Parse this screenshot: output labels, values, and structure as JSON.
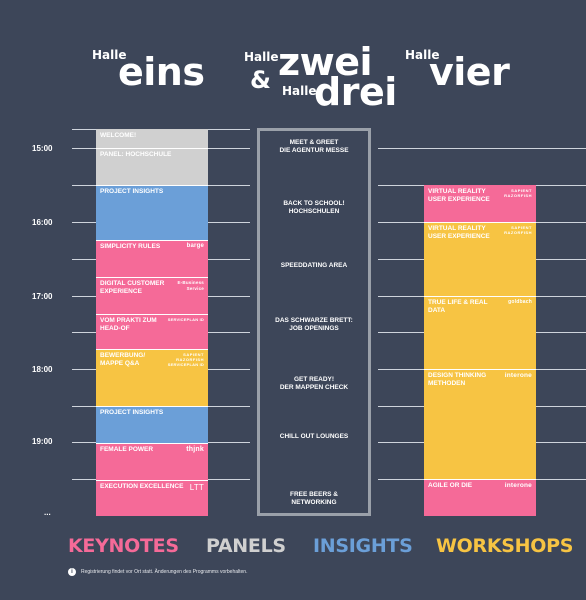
{
  "halls": {
    "eins": {
      "prefix": "Halle",
      "name": "eins"
    },
    "zwei": {
      "prefix": "Halle",
      "name": "zwei"
    },
    "amp": "&",
    "drei": {
      "prefix": "Halle",
      "name": "drei"
    },
    "vier": {
      "prefix": "Halle",
      "name": "vier"
    }
  },
  "times": [
    "15:00",
    "16:00",
    "17:00",
    "18:00",
    "19:00",
    "..."
  ],
  "left_sessions": [
    {
      "label": "WELCOME!",
      "logo": "",
      "color": "grey"
    },
    {
      "label": "PANEL: HOCHSCHULE",
      "logo": "",
      "color": "grey"
    },
    {
      "label": "PROJECT INSIGHTS",
      "logo": "",
      "color": "blue"
    },
    {
      "label": "SIMPLICITY RULES",
      "logo": "barge",
      "color": "pink"
    },
    {
      "label": "DIGITAL CUSTOMER EXPERIENCE",
      "logo": "E-Business Service",
      "color": "pink"
    },
    {
      "label": "VOM PRAKTI ZUM HEAD-OF",
      "logo": "SERVICEPLAN ID",
      "color": "pink"
    },
    {
      "label": "BEWERBUNG/ MAPPE Q&A",
      "logo": "SAPIENT RAZORFISH",
      "logo2": "SERVICEPLAN ID",
      "color": "yellow"
    },
    {
      "label": "PROJECT INSIGHTS",
      "logo": "",
      "color": "blue"
    },
    {
      "label": "FEMALE POWER",
      "logo": "thjnk",
      "color": "pink"
    },
    {
      "label": "EXECUTION EXCELLENCE",
      "logo": "LTT",
      "color": "pink"
    }
  ],
  "middle_sessions": [
    "MEET & GREET\nDIE AGENTUR MESSE",
    "BACK TO SCHOOL!\nHOCHSCHULEN",
    "SPEEDDATING AREA",
    "DAS SCHWARZE BRETT:\nJOB OPENINGS",
    "GET READY!\nDER MAPPEN CHECK",
    "CHILL OUT LOUNGES",
    "FREE BEERS &\nNETWORKING"
  ],
  "right_sessions": [
    {
      "label": "VIRTUAL REALITY USER EXPERIENCE",
      "logo": "SAPIENT RAZORFISH",
      "color": "pink"
    },
    {
      "label": "VIRTUAL REALITY USER EXPERIENCE",
      "logo": "SAPIENT RAZORFISH",
      "color": "yellow"
    },
    {
      "label": "TRUE LIFE & REAL DATA",
      "logo": "goldbach",
      "color": "yellow"
    },
    {
      "label": "DESIGN THINKING METHODEN",
      "logo": "interone",
      "color": "yellow"
    },
    {
      "label": "AGILE OR DIE",
      "logo": "interone",
      "color": "pink"
    }
  ],
  "legend": {
    "keynotes": "KEYNOTES",
    "panels": "PANELS",
    "insights": "INSIGHTS",
    "workshops": "WORKSHOPS"
  },
  "colors": {
    "pink": "#f56a98",
    "grey": "#d0d0d0",
    "blue": "#6b9fd8",
    "yellow": "#f7c443",
    "background": "#3d4659"
  },
  "footnote": "Registrierung findet vor Ort statt. Änderungen des Programms vorbehalten."
}
